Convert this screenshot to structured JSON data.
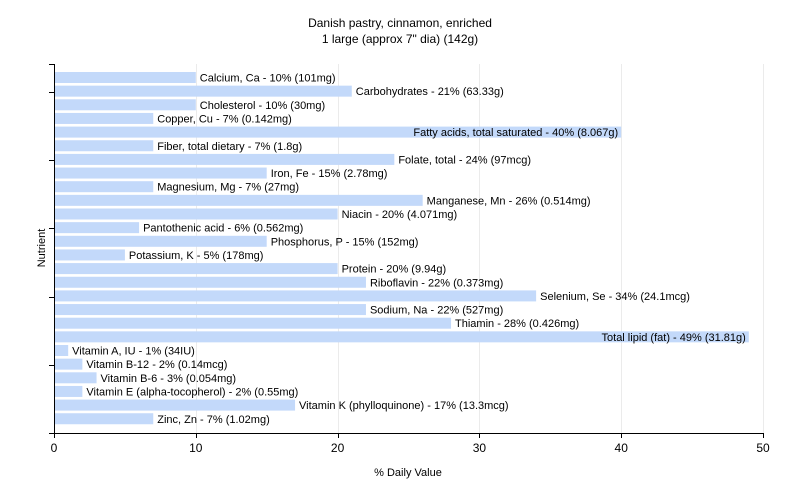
{
  "chart_data": {
    "type": "bar",
    "orientation": "horizontal",
    "title": "Danish pastry, cinnamon, enriched",
    "subtitle": "1 large (approx 7\" dia) (142g)",
    "xlabel": "% Daily Value",
    "ylabel": "Nutrient",
    "xlim": [
      0,
      50
    ],
    "xticks": [
      0,
      10,
      20,
      30,
      40,
      50
    ],
    "grid": true,
    "bar_color": "#c3d9fa",
    "categories": [
      "Calcium, Ca",
      "Carbohydrates",
      "Cholesterol",
      "Copper, Cu",
      "Fatty acids, total saturated",
      "Fiber, total dietary",
      "Folate, total",
      "Iron, Fe",
      "Magnesium, Mg",
      "Manganese, Mn",
      "Niacin",
      "Pantothenic acid",
      "Phosphorus, P",
      "Potassium, K",
      "Protein",
      "Riboflavin",
      "Selenium, Se",
      "Sodium, Na",
      "Thiamin",
      "Total lipid (fat)",
      "Vitamin A, IU",
      "Vitamin B-12",
      "Vitamin B-6",
      "Vitamin E (alpha-tocopherol)",
      "Vitamin K (phylloquinone)",
      "Zinc, Zn"
    ],
    "values": [
      10,
      21,
      10,
      7,
      40,
      7,
      24,
      15,
      7,
      26,
      20,
      6,
      15,
      5,
      20,
      22,
      34,
      22,
      28,
      49,
      1,
      2,
      3,
      2,
      17,
      7
    ],
    "labels": [
      "Calcium, Ca - 10% (101mg)",
      "Carbohydrates - 21% (63.33g)",
      "Cholesterol - 10% (30mg)",
      "Copper, Cu - 7% (0.142mg)",
      "Fatty acids, total saturated - 40% (8.067g)",
      "Fiber, total dietary - 7% (1.8g)",
      "Folate, total - 24% (97mcg)",
      "Iron, Fe - 15% (2.78mg)",
      "Magnesium, Mg - 7% (27mg)",
      "Manganese, Mn - 26% (0.514mg)",
      "Niacin - 20% (4.071mg)",
      "Pantothenic acid - 6% (0.562mg)",
      "Phosphorus, P - 15% (152mg)",
      "Potassium, K - 5% (178mg)",
      "Protein - 20% (9.94g)",
      "Riboflavin - 22% (0.373mg)",
      "Selenium, Se - 34% (24.1mcg)",
      "Sodium, Na - 22% (527mg)",
      "Thiamin - 28% (0.426mg)",
      "Total lipid (fat) - 49% (31.81g)",
      "Vitamin A, IU - 1% (34IU)",
      "Vitamin B-12 - 2% (0.14mcg)",
      "Vitamin B-6 - 3% (0.054mg)",
      "Vitamin E (alpha-tocopherol) - 2% (0.55mg)",
      "Vitamin K (phylloquinone) - 17% (13.3mcg)",
      "Zinc, Zn - 7% (1.02mg)"
    ]
  }
}
